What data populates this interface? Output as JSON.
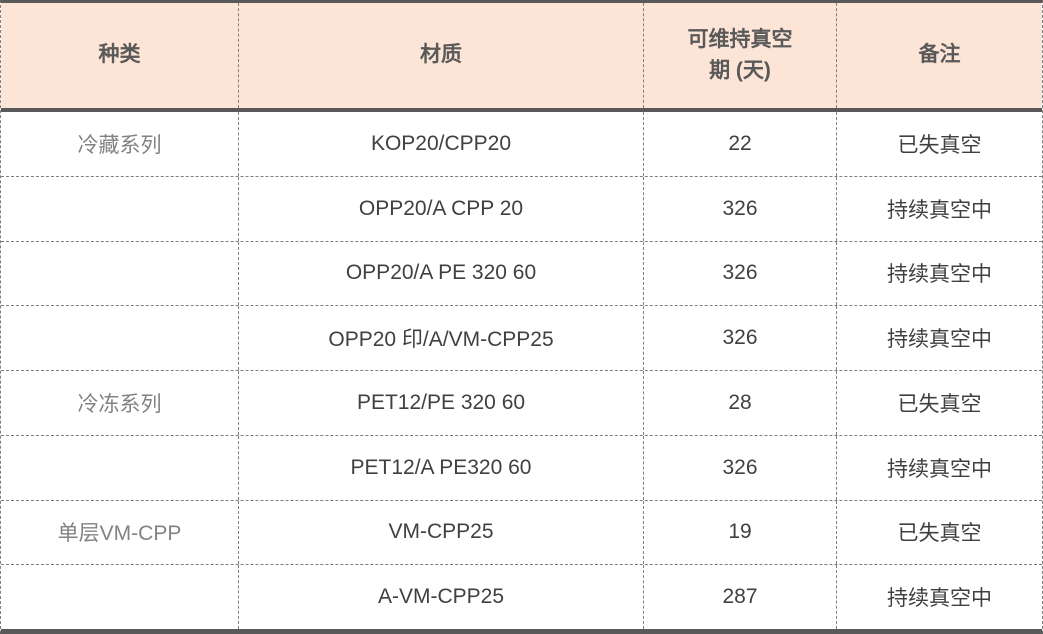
{
  "table": {
    "columns": [
      {
        "label": "种类"
      },
      {
        "label": "材质"
      },
      {
        "label": "可维持真空\n期 (天)"
      },
      {
        "label": "备注"
      }
    ],
    "rows": [
      {
        "category": "冷藏系列",
        "material": "KOP20/CPP20",
        "days": "22",
        "remark": "已失真空"
      },
      {
        "category": "",
        "material": "OPP20/A CPP 20",
        "days": "326",
        "remark": "持续真空中"
      },
      {
        "category": "",
        "material": "OPP20/A PE 320 60",
        "days": "326",
        "remark": "持续真空中"
      },
      {
        "category": "",
        "material": "OPP20 印/A/VM-CPP25",
        "days": "326",
        "remark": "持续真空中"
      },
      {
        "category": "冷冻系列",
        "material": "PET12/PE 320 60",
        "days": "28",
        "remark": "已失真空"
      },
      {
        "category": "",
        "material": "PET12/A PE320 60",
        "days": "326",
        "remark": "持续真空中"
      },
      {
        "category": "单层VM-CPP",
        "material": "VM-CPP25",
        "days": "19",
        "remark": "已失真空"
      },
      {
        "category": "",
        "material": "A-VM-CPP25",
        "days": "287",
        "remark": "持续真空中"
      }
    ],
    "colors": {
      "header_bg": "#fce4d6",
      "border_dark": "#595959",
      "border_dashed": "#7f7f7f",
      "header_text": "#595959",
      "category_text": "#828282",
      "cell_text": "#404040"
    }
  }
}
